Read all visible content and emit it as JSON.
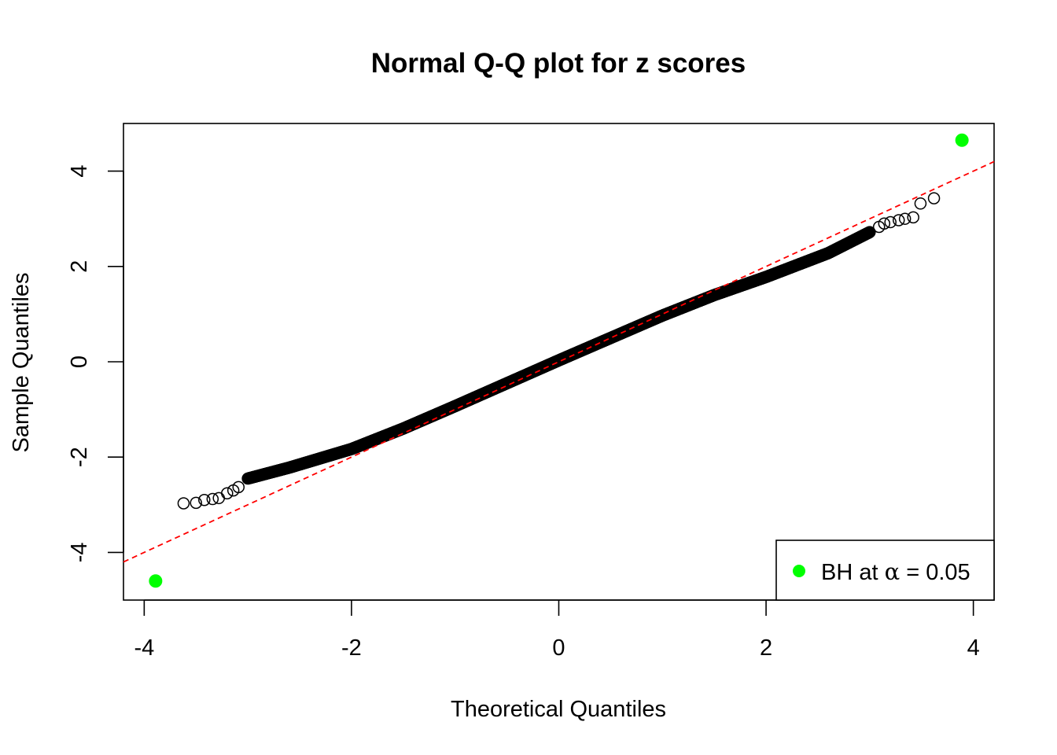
{
  "chart_data": {
    "type": "scatter",
    "title": "Normal Q-Q plot for z scores",
    "xlabel": "Theoretical Quantiles",
    "ylabel": "Sample Quantiles",
    "xlim": [
      -4.2,
      4.2
    ],
    "ylim": [
      -5,
      5
    ],
    "x_ticks": [
      -4,
      -2,
      0,
      2,
      4
    ],
    "y_ticks": [
      -4,
      -2,
      0,
      2,
      4
    ],
    "x_tick_labels": [
      "-4",
      "-2",
      "0",
      "2",
      "4"
    ],
    "y_tick_labels": [
      "-4",
      "-2",
      "0",
      "2",
      "4"
    ],
    "grid": false,
    "legend": {
      "position": "bottom-right",
      "prefix": "BH at ",
      "symbol": "α",
      "suffix": " = 0.05",
      "marker_color": "#00ff00"
    },
    "reference_line": {
      "style": "dashed",
      "color": "#ff0000",
      "intercept": 0,
      "slope": 1.0
    },
    "point_color": "#000000",
    "highlight_color": "#00ff00",
    "curve_knots": [
      [
        -3.0,
        -2.45
      ],
      [
        -2.6,
        -2.22
      ],
      [
        -2.0,
        -1.83
      ],
      [
        -1.5,
        -1.4
      ],
      [
        -1.0,
        -0.93
      ],
      [
        -0.5,
        -0.45
      ],
      [
        0.0,
        0.03
      ],
      [
        0.5,
        0.5
      ],
      [
        1.0,
        0.97
      ],
      [
        1.5,
        1.4
      ],
      [
        2.0,
        1.78
      ],
      [
        2.6,
        2.28
      ],
      [
        3.0,
        2.72
      ]
    ],
    "curve_x_range": [
      -3.0,
      3.0
    ],
    "curve_step": 0.004,
    "tail_points": [
      [
        -3.62,
        -2.97
      ],
      [
        -3.5,
        -2.96
      ],
      [
        -3.42,
        -2.9
      ],
      [
        -3.34,
        -2.88
      ],
      [
        -3.28,
        -2.86
      ],
      [
        -3.2,
        -2.76
      ],
      [
        -3.14,
        -2.7
      ],
      [
        -3.09,
        -2.63
      ],
      [
        3.09,
        2.83
      ],
      [
        3.14,
        2.9
      ],
      [
        3.2,
        2.93
      ],
      [
        3.28,
        2.97
      ],
      [
        3.34,
        3.0
      ],
      [
        3.42,
        3.03
      ],
      [
        3.49,
        3.32
      ],
      [
        3.62,
        3.43
      ]
    ],
    "highlighted_points": [
      [
        -3.89,
        -4.6
      ],
      [
        3.89,
        4.65
      ]
    ]
  }
}
